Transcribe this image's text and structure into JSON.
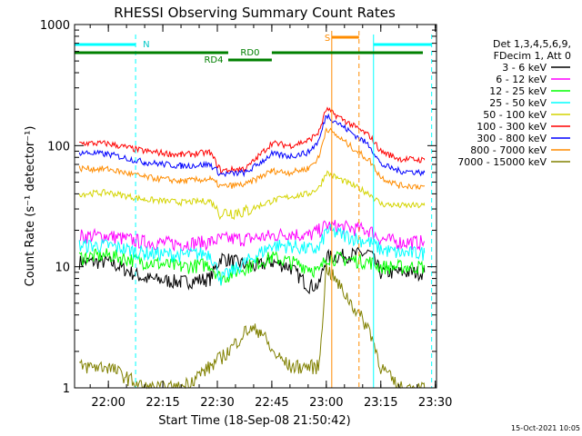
{
  "chart_data": {
    "type": "line",
    "title": "RHESSI Observing Summary Count Rates",
    "xlabel": "Start Time (18-Sep-08 21:50:42)",
    "ylabel": "Count Rate (s⁻¹ detector⁻¹)",
    "ylog": true,
    "ylim": [
      1,
      1000
    ],
    "xlim": [
      "21:50:42",
      "23:30:20"
    ],
    "x_ticks": [
      "22:00",
      "22:15",
      "22:30",
      "22:45",
      "23:00",
      "23:15",
      "23:30"
    ],
    "y_ticks": [
      "1",
      "10",
      "100",
      "1000"
    ],
    "legend_header": [
      "Det 1,3,4,5,6,9,",
      "FDecim 1, Att 0"
    ],
    "legend_position": "right",
    "timestamp": "15-Oct-2021 10:05",
    "annotations": {
      "night_label": "N",
      "saa_label": "S",
      "rd0_label": "RD0",
      "rd4_label": "RD4"
    },
    "series": [
      {
        "name": "3 - 6 keV",
        "color": "#000000",
        "points": [
          [
            "21:52",
            11
          ],
          [
            "22:00",
            11
          ],
          [
            "22:10",
            8
          ],
          [
            "22:20",
            7.5
          ],
          [
            "22:28",
            8
          ],
          [
            "22:31",
            12
          ],
          [
            "22:35",
            11
          ],
          [
            "22:40",
            10
          ],
          [
            "22:45",
            11
          ],
          [
            "22:50",
            10
          ],
          [
            "22:55",
            7
          ],
          [
            "22:58",
            7
          ],
          [
            "23:00",
            12
          ],
          [
            "23:12",
            13
          ],
          [
            "23:15",
            9
          ],
          [
            "23:20",
            9
          ],
          [
            "23:27",
            9
          ]
        ]
      },
      {
        "name": "6 - 12 keV",
        "color": "#ff00ff",
        "points": [
          [
            "21:52",
            18
          ],
          [
            "22:00",
            18
          ],
          [
            "22:10",
            16
          ],
          [
            "22:20",
            15.5
          ],
          [
            "22:28",
            16
          ],
          [
            "22:31",
            17
          ],
          [
            "22:38",
            17
          ],
          [
            "22:45",
            18
          ],
          [
            "22:50",
            19
          ],
          [
            "22:55",
            18
          ],
          [
            "22:58",
            20
          ],
          [
            "23:00",
            22
          ],
          [
            "23:12",
            20
          ],
          [
            "23:15",
            17
          ],
          [
            "23:20",
            16
          ],
          [
            "23:27",
            16
          ]
        ]
      },
      {
        "name": "12 - 25 keV",
        "color": "#00ff00",
        "points": [
          [
            "21:52",
            12
          ],
          [
            "22:00",
            12.5
          ],
          [
            "22:10",
            11
          ],
          [
            "22:20",
            10
          ],
          [
            "22:28",
            10.5
          ],
          [
            "22:31",
            8
          ],
          [
            "22:38",
            10
          ],
          [
            "22:45",
            12
          ],
          [
            "22:50",
            11
          ],
          [
            "22:55",
            10
          ],
          [
            "22:58",
            9
          ],
          [
            "23:00",
            12
          ],
          [
            "23:12",
            11
          ],
          [
            "23:15",
            10
          ],
          [
            "23:20",
            10
          ],
          [
            "23:27",
            10
          ]
        ]
      },
      {
        "name": "25 - 50 keV",
        "color": "#00ffff",
        "points": [
          [
            "21:52",
            15
          ],
          [
            "22:00",
            15
          ],
          [
            "22:10",
            13
          ],
          [
            "22:20",
            12.5
          ],
          [
            "22:28",
            13
          ],
          [
            "22:31",
            8
          ],
          [
            "22:38",
            11
          ],
          [
            "22:45",
            15
          ],
          [
            "22:50",
            15
          ],
          [
            "22:55",
            14
          ],
          [
            "22:58",
            14
          ],
          [
            "23:00",
            20
          ],
          [
            "23:12",
            16
          ],
          [
            "23:15",
            14
          ],
          [
            "23:20",
            13
          ],
          [
            "23:27",
            13
          ]
        ]
      },
      {
        "name": "50 - 100 keV",
        "color": "#d4d400",
        "points": [
          [
            "21:52",
            40
          ],
          [
            "22:00",
            41
          ],
          [
            "22:10",
            36
          ],
          [
            "22:20",
            34
          ],
          [
            "22:28",
            35
          ],
          [
            "22:31",
            28
          ],
          [
            "22:38",
            29
          ],
          [
            "22:45",
            35
          ],
          [
            "22:50",
            38
          ],
          [
            "22:55",
            40
          ],
          [
            "22:58",
            45
          ],
          [
            "23:00",
            60
          ],
          [
            "23:12",
            40
          ],
          [
            "23:15",
            33
          ],
          [
            "23:20",
            32
          ],
          [
            "23:27",
            32
          ]
        ]
      },
      {
        "name": "100 - 300 keV",
        "color": "#ff0000",
        "points": [
          [
            "21:52",
            105
          ],
          [
            "22:00",
            104
          ],
          [
            "22:10",
            90
          ],
          [
            "22:20",
            84
          ],
          [
            "22:28",
            88
          ],
          [
            "22:31",
            62
          ],
          [
            "22:38",
            65
          ],
          [
            "22:45",
            105
          ],
          [
            "22:50",
            100
          ],
          [
            "22:55",
            110
          ],
          [
            "22:58",
            130
          ],
          [
            "23:00",
            200
          ],
          [
            "23:12",
            120
          ],
          [
            "23:15",
            90
          ],
          [
            "23:20",
            78
          ],
          [
            "23:27",
            76
          ]
        ]
      },
      {
        "name": "300 - 800 keV",
        "color": "#0000ff",
        "points": [
          [
            "21:52",
            88
          ],
          [
            "22:00",
            85
          ],
          [
            "22:10",
            73
          ],
          [
            "22:20",
            68
          ],
          [
            "22:28",
            70
          ],
          [
            "22:31",
            58
          ],
          [
            "22:38",
            60
          ],
          [
            "22:45",
            85
          ],
          [
            "22:50",
            82
          ],
          [
            "22:55",
            88
          ],
          [
            "22:58",
            110
          ],
          [
            "23:00",
            180
          ],
          [
            "23:12",
            100
          ],
          [
            "23:15",
            70
          ],
          [
            "23:20",
            62
          ],
          [
            "23:27",
            60
          ]
        ]
      },
      {
        "name": "800 - 7000 keV",
        "color": "#ff8c00",
        "points": [
          [
            "21:52",
            65
          ],
          [
            "22:00",
            64
          ],
          [
            "22:10",
            55
          ],
          [
            "22:20",
            51
          ],
          [
            "22:28",
            53
          ],
          [
            "22:31",
            46
          ],
          [
            "22:38",
            48
          ],
          [
            "22:45",
            62
          ],
          [
            "22:50",
            60
          ],
          [
            "22:55",
            65
          ],
          [
            "22:58",
            80
          ],
          [
            "23:00",
            140
          ],
          [
            "23:12",
            75
          ],
          [
            "23:15",
            55
          ],
          [
            "23:20",
            47
          ],
          [
            "23:27",
            46
          ]
        ]
      },
      {
        "name": "7000 - 15000 keV",
        "color": "#808000",
        "points": [
          [
            "21:52",
            1.5
          ],
          [
            "22:00",
            1.5
          ],
          [
            "22:10",
            1
          ],
          [
            "22:20",
            1
          ],
          [
            "22:28",
            1.5
          ],
          [
            "22:33",
            2
          ],
          [
            "22:38",
            3
          ],
          [
            "22:42",
            3
          ],
          [
            "22:45",
            2
          ],
          [
            "22:50",
            1.5
          ],
          [
            "22:58",
            1.5
          ],
          [
            "23:00",
            10
          ],
          [
            "23:12",
            3
          ],
          [
            "23:15",
            1.5
          ],
          [
            "23:20",
            1
          ],
          [
            "23:27",
            1
          ]
        ]
      }
    ]
  }
}
